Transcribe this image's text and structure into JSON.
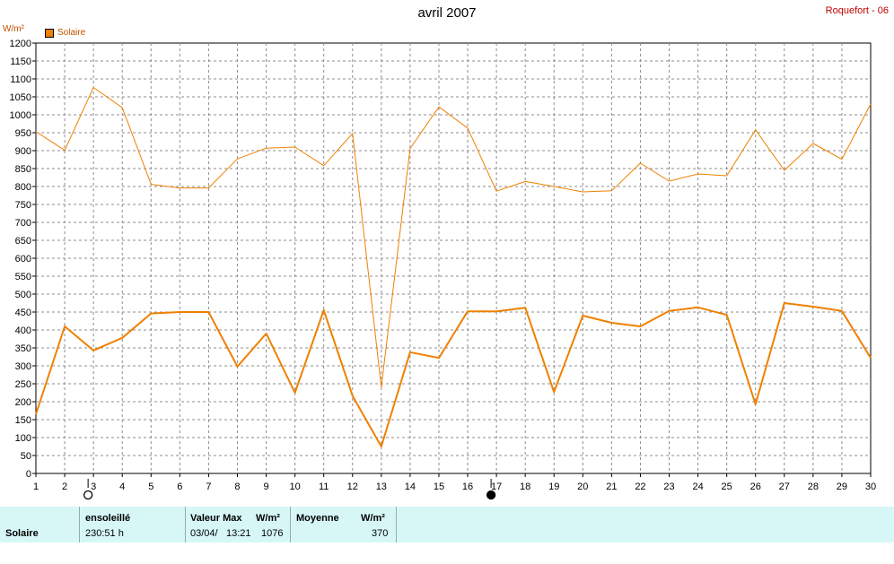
{
  "header": {
    "title": "avril 2007",
    "station": "Roquefort - 06",
    "unit": "W/m²"
  },
  "legend": {
    "label": "Solaire",
    "color": "#f08000"
  },
  "chart_data": {
    "type": "line",
    "title": "avril 2007",
    "ylabel": "W/m²",
    "x": [
      1,
      2,
      3,
      4,
      5,
      6,
      7,
      8,
      9,
      10,
      11,
      12,
      13,
      14,
      15,
      16,
      17,
      18,
      19,
      20,
      21,
      22,
      23,
      24,
      25,
      26,
      27,
      28,
      29,
      30
    ],
    "xlim": [
      1,
      30
    ],
    "ylim": [
      0,
      1200
    ],
    "ytick_step": 50,
    "grid": true,
    "legend_position": "top-left",
    "series": [
      {
        "name": "Solaire",
        "kind": "max",
        "color": "#f08000",
        "values": [
          953,
          901,
          1076,
          1020,
          806,
          796,
          796,
          877,
          907,
          910,
          858,
          948,
          240,
          906,
          1022,
          963,
          787,
          814,
          800,
          785,
          788,
          865,
          815,
          835,
          830,
          958,
          845,
          920,
          876,
          1030
        ]
      },
      {
        "name": "Solaire",
        "kind": "mean",
        "color": "#f08000",
        "values": [
          165,
          410,
          343,
          378,
          446,
          450,
          450,
          298,
          390,
          225,
          455,
          216,
          75,
          338,
          322,
          452,
          452,
          462,
          227,
          440,
          420,
          410,
          453,
          463,
          442,
          193,
          475,
          465,
          453,
          322
        ]
      }
    ],
    "moon_phases": [
      {
        "day": 3,
        "phase": "new"
      },
      {
        "day": 17,
        "phase": "full"
      }
    ]
  },
  "summary": {
    "row_label": "Solaire",
    "ensoleille_label": "ensoleillé",
    "ensoleille_value": "230:51 h",
    "valeur_max_label": "Valeur Max",
    "valeur_max_unit": "W/m²",
    "valeur_max_date": "03/04/",
    "valeur_max_time": "13:21",
    "valeur_max_value": "1076",
    "moyenne_label": "Moyenne",
    "moyenne_unit": "W/m²",
    "moyenne_value": "370"
  }
}
